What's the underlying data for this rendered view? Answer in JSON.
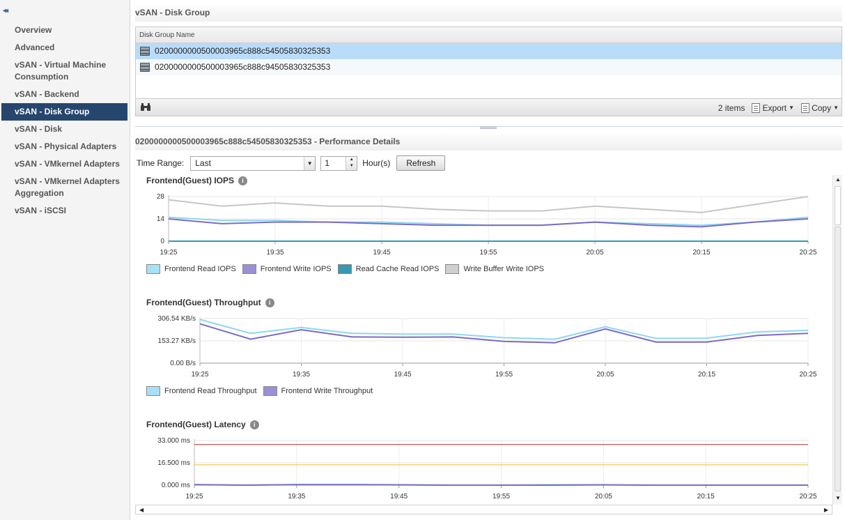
{
  "sidebar": {
    "collapse_label": "◂◂",
    "items": [
      {
        "label": "Overview",
        "active": false
      },
      {
        "label": "Advanced",
        "active": false
      },
      {
        "label": "vSAN - Virtual Machine Consumption",
        "active": false
      },
      {
        "label": "vSAN - Backend",
        "active": false
      },
      {
        "label": "vSAN - Disk Group",
        "active": true
      },
      {
        "label": "vSAN - Disk",
        "active": false
      },
      {
        "label": "vSAN - Physical Adapters",
        "active": false
      },
      {
        "label": "vSAN - VMkernel Adapters",
        "active": false
      },
      {
        "label": "vSAN - VMkernel Adapters Aggregation",
        "active": false
      },
      {
        "label": "vSAN - iSCSI",
        "active": false
      }
    ]
  },
  "disk_group": {
    "title": "vSAN - Disk Group",
    "column_header": "Disk Group Name",
    "rows": [
      "0200000000500003965c888c54505830325353",
      "0200000000500003965c888c94505830325353"
    ],
    "items_count": "2 items",
    "export_label": "Export",
    "copy_label": "Copy"
  },
  "performance": {
    "title": "0200000000500003965c888c54505830325353 - Performance Details",
    "time_range_label": "Time Range:",
    "time_range_value": "Last",
    "hours_value": "1",
    "hours_label": "Hour(s)",
    "refresh_label": "Refresh"
  },
  "colors": {
    "read": "#8fd6f2",
    "write": "#7b6cc4",
    "cache": "#3a98b0",
    "buffer": "#c6c6c6",
    "red_threshold": "#b03030",
    "yellow_threshold": "#e8c020"
  },
  "chart_data": [
    {
      "type": "line",
      "title": "Frontend(Guest) IOPS",
      "x": [
        "19:25",
        "19:30",
        "19:35",
        "19:40",
        "19:45",
        "19:50",
        "19:55",
        "20:00",
        "20:05",
        "20:10",
        "20:15",
        "20:20",
        "20:25"
      ],
      "x_tick_labels": [
        "19:25",
        "19:35",
        "19:45",
        "19:55",
        "20:05",
        "20:15",
        "20:25"
      ],
      "y_tick_labels": [
        "28",
        "14",
        "0"
      ],
      "ylim": [
        0,
        28
      ],
      "series": [
        {
          "name": "Frontend Read IOPS",
          "color": "#8fd6f2",
          "values": [
            15,
            13,
            13,
            12,
            12,
            11,
            10,
            10,
            12,
            11,
            10,
            12,
            15
          ]
        },
        {
          "name": "Frontend Write IOPS",
          "color": "#7b6cc4",
          "values": [
            14,
            11,
            12,
            12,
            11,
            10,
            10,
            10,
            12,
            10,
            9,
            12,
            14
          ]
        },
        {
          "name": "Read Cache Read IOPS",
          "color": "#3a98b0",
          "values": [
            0,
            0,
            0,
            0,
            0,
            0,
            0,
            0,
            0,
            0,
            0,
            0,
            0
          ]
        },
        {
          "name": "Write Buffer Write IOPS",
          "color": "#c6c6c6",
          "values": [
            26,
            22,
            24,
            22,
            22,
            20,
            19,
            19,
            22,
            20,
            18,
            23,
            28
          ]
        }
      ]
    },
    {
      "type": "line",
      "title": "Frontend(Guest) Throughput",
      "x": [
        "19:25",
        "19:30",
        "19:35",
        "19:40",
        "19:45",
        "19:50",
        "19:55",
        "20:00",
        "20:05",
        "20:10",
        "20:15",
        "20:20",
        "20:25"
      ],
      "x_tick_labels": [
        "19:25",
        "19:35",
        "19:45",
        "19:55",
        "20:05",
        "20:15",
        "20:25"
      ],
      "y_tick_labels": [
        "306.54 KB/s",
        "153.27 KB/s",
        "0.00 B/s"
      ],
      "ylim": [
        0,
        306.54
      ],
      "series": [
        {
          "name": "Frontend Read Throughput",
          "color": "#8fd6f2",
          "values": [
            300,
            205,
            245,
            205,
            200,
            200,
            175,
            165,
            250,
            170,
            172,
            215,
            225
          ]
        },
        {
          "name": "Frontend Write Throughput",
          "color": "#7b6cc4",
          "values": [
            270,
            165,
            230,
            180,
            178,
            180,
            150,
            140,
            235,
            145,
            145,
            190,
            205
          ]
        }
      ]
    },
    {
      "type": "line",
      "title": "Frontend(Guest) Latency",
      "x": [
        "19:25",
        "19:30",
        "19:35",
        "19:40",
        "19:45",
        "19:50",
        "19:55",
        "20:00",
        "20:05",
        "20:10",
        "20:15",
        "20:20",
        "20:25"
      ],
      "x_tick_labels": [
        "19:25",
        "19:35",
        "19:45",
        "19:55",
        "20:05",
        "20:15",
        "20:25"
      ],
      "y_tick_labels": [
        "33.000 ms",
        "16.500 ms",
        "0.000 ms"
      ],
      "ylim": [
        0,
        33
      ],
      "series": [
        {
          "color": "#b03030",
          "values": [
            30,
            30,
            30,
            30,
            30,
            30,
            30,
            30,
            30,
            30,
            30,
            30,
            30
          ]
        },
        {
          "color": "#e8c020",
          "values": [
            15,
            15,
            15,
            15,
            15,
            15,
            15,
            15,
            15,
            15,
            15,
            15,
            15
          ]
        },
        {
          "color": "#8fd6f2",
          "values": [
            0.5,
            0,
            0.5,
            0.5,
            0.3,
            0,
            0,
            0.3,
            0.3,
            0,
            0,
            0,
            0
          ]
        },
        {
          "color": "#7b6cc4",
          "values": [
            0.3,
            0,
            0.3,
            0.3,
            0.2,
            0,
            0,
            0,
            0.2,
            0,
            0,
            0,
            0
          ]
        }
      ]
    }
  ]
}
